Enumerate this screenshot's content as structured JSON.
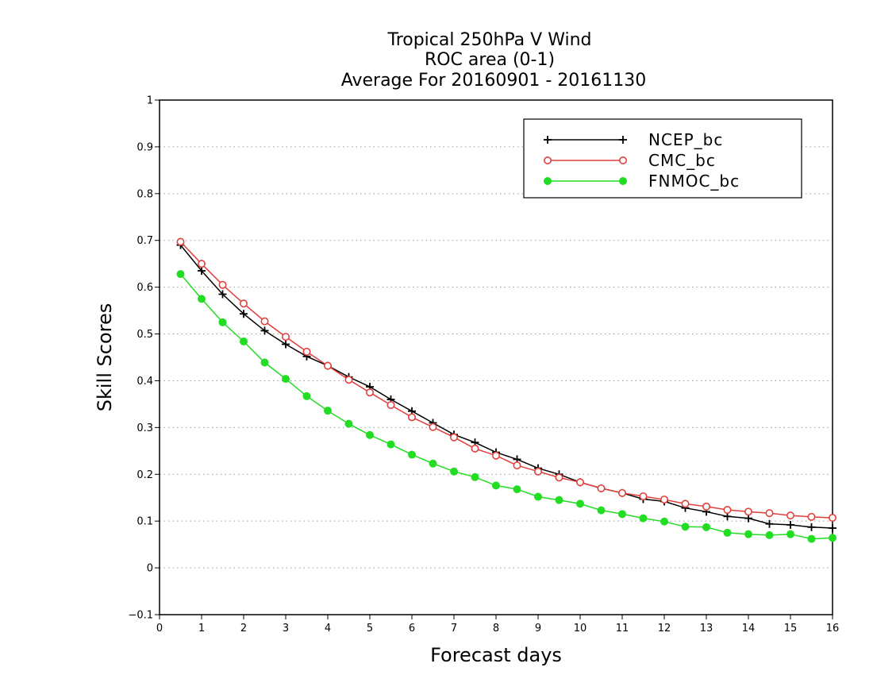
{
  "chart_data": {
    "type": "line",
    "title": [
      "Tropical 250hPa V Wind",
      "ROC area (0-1)",
      "Average For 20160901 - 20161130"
    ],
    "xlabel": "Forecast days",
    "ylabel": "Skill Scores",
    "xlim": [
      0,
      16
    ],
    "ylim": [
      -0.1,
      1
    ],
    "xticks": [
      0,
      1,
      2,
      3,
      4,
      5,
      6,
      7,
      8,
      9,
      10,
      11,
      12,
      13,
      14,
      15,
      16
    ],
    "yticks": [
      -0.1,
      0,
      0.1,
      0.2,
      0.3,
      0.4,
      0.5,
      0.6,
      0.7,
      0.8,
      0.9,
      1
    ],
    "ytick_labels": [
      "−0.1",
      "0",
      "0.1",
      "0.2",
      "0.3",
      "0.4",
      "0.5",
      "0.6",
      "0.7",
      "0.8",
      "0.9",
      "1"
    ],
    "grid": "dotted horizontal",
    "legend": "top-right",
    "x": [
      0.5,
      1,
      1.5,
      2,
      2.5,
      3,
      3.5,
      4,
      4.5,
      5,
      5.5,
      6,
      6.5,
      7,
      7.5,
      8,
      8.5,
      9,
      9.5,
      10,
      10.5,
      11,
      11.5,
      12,
      12.5,
      13,
      13.5,
      14,
      14.5,
      15,
      15.5,
      16
    ],
    "series": [
      {
        "name": "NCEP_bc",
        "color": "#000000",
        "marker": "plus",
        "values": [
          0.69,
          0.635,
          0.585,
          0.543,
          0.507,
          0.478,
          0.452,
          0.432,
          0.408,
          0.387,
          0.36,
          0.335,
          0.31,
          0.285,
          0.268,
          0.247,
          0.232,
          0.213,
          0.2,
          0.183,
          0.17,
          0.16,
          0.147,
          0.142,
          0.128,
          0.12,
          0.11,
          0.106,
          0.094,
          0.092,
          0.087,
          0.085
        ]
      },
      {
        "name": "CMC_bc",
        "color": "#e0403c",
        "marker": "open-circle",
        "values": [
          0.697,
          0.65,
          0.605,
          0.565,
          0.527,
          0.494,
          0.462,
          0.432,
          0.402,
          0.375,
          0.348,
          0.322,
          0.301,
          0.279,
          0.255,
          0.24,
          0.219,
          0.206,
          0.193,
          0.183,
          0.17,
          0.16,
          0.153,
          0.146,
          0.137,
          0.131,
          0.124,
          0.12,
          0.117,
          0.112,
          0.109,
          0.107
        ]
      },
      {
        "name": "FNMOC_bc",
        "color": "#22dd22",
        "marker": "filled-circle",
        "values": [
          0.628,
          0.575,
          0.525,
          0.484,
          0.439,
          0.404,
          0.367,
          0.336,
          0.308,
          0.284,
          0.264,
          0.242,
          0.223,
          0.206,
          0.194,
          0.176,
          0.168,
          0.152,
          0.145,
          0.137,
          0.123,
          0.115,
          0.106,
          0.099,
          0.088,
          0.087,
          0.075,
          0.072,
          0.07,
          0.072,
          0.062,
          0.064
        ]
      }
    ]
  }
}
